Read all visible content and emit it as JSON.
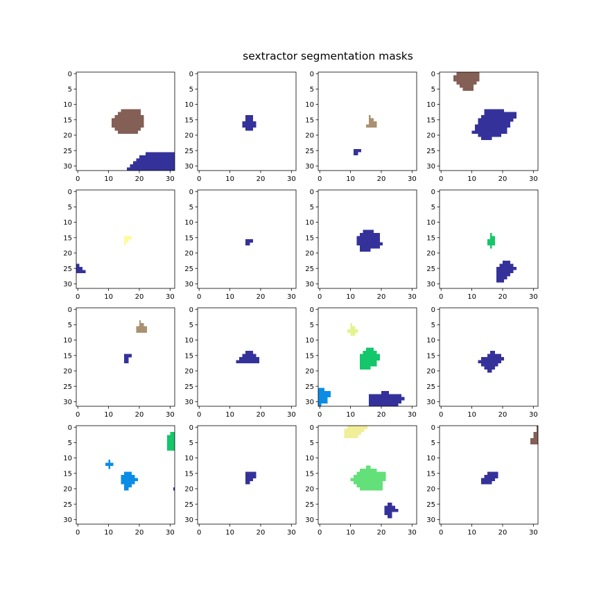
{
  "title": "sextractor segmentation masks",
  "chart_data": {
    "type": "heatmap",
    "title": "sextractor segmentation masks",
    "grid_rows": 4,
    "grid_cols": 4,
    "image_size": [
      32,
      32
    ],
    "xlim": [
      -0.5,
      31.5
    ],
    "ylim": [
      31.5,
      -0.5
    ],
    "xticks": [
      0,
      10,
      20,
      30
    ],
    "yticks": [
      0,
      5,
      10,
      15,
      20,
      25,
      30
    ],
    "grid": false,
    "panels": [
      {
        "segments": [
          {
            "color": "#835f56",
            "rows": {
              "12": [
                14,
                20
              ],
              "13": [
                13,
                20
              ],
              "14": [
                12,
                21
              ],
              "15": [
                11,
                21
              ],
              "16": [
                11,
                21
              ],
              "17": [
                11,
                21
              ],
              "18": [
                12,
                20
              ],
              "19": [
                13,
                19
              ]
            }
          },
          {
            "color": "#34329a",
            "rows": {
              "26": [
                22,
                31
              ],
              "27": [
                20,
                31
              ],
              "28": [
                19,
                31
              ],
              "29": [
                18,
                31
              ],
              "30": [
                17,
                31
              ],
              "31": [
                16,
                31
              ]
            }
          }
        ]
      },
      {
        "segments": [
          {
            "color": "#34329a",
            "rows": {
              "14": [
                15,
                17
              ],
              "15": [
                15,
                17
              ],
              "16": [
                14,
                18
              ],
              "17": [
                14,
                18
              ],
              "18": [
                15,
                17
              ]
            }
          }
        ]
      },
      {
        "segments": [
          {
            "color": "#a99171",
            "rows": {
              "14": [
                16,
                16
              ],
              "15": [
                16,
                17
              ],
              "16": [
                16,
                18
              ],
              "17": [
                15,
                18
              ]
            }
          },
          {
            "color": "#34329a",
            "rows": {
              "25": [
                11,
                13
              ],
              "26": [
                11,
                12
              ]
            }
          }
        ]
      },
      {
        "segments": [
          {
            "color": "#835f56",
            "rows": {
              "0": [
                5,
                12
              ],
              "1": [
                4,
                12
              ],
              "2": [
                4,
                12
              ],
              "3": [
                5,
                11
              ],
              "4": [
                6,
                10
              ],
              "5": [
                7,
                10
              ]
            }
          },
          {
            "color": "#34329a",
            "rows": {
              "12": [
                14,
                20
              ],
              "13": [
                14,
                24
              ],
              "14": [
                13,
                24
              ],
              "15": [
                12,
                23
              ],
              "16": [
                12,
                22
              ],
              "17": [
                11,
                22
              ],
              "18": [
                11,
                21
              ],
              "19": [
                10,
                21
              ],
              "20": [
                12,
                19
              ],
              "21": [
                13,
                16
              ]
            }
          }
        ]
      },
      {
        "segments": [
          {
            "color": "#fdfb9a",
            "rows": {
              "15": [
                15,
                17
              ],
              "16": [
                15,
                16
              ],
              "17": [
                15,
                15
              ]
            }
          },
          {
            "color": "#34329a",
            "rows": {
              "24": [
                -1,
                0
              ],
              "25": [
                -1,
                1
              ],
              "26": [
                -1,
                2
              ]
            }
          }
        ]
      },
      {
        "segments": [
          {
            "color": "#34329a",
            "rows": {
              "16": [
                15,
                17
              ],
              "17": [
                15,
                16
              ]
            }
          }
        ]
      },
      {
        "segments": [
          {
            "color": "#34329a",
            "rows": {
              "13": [
                14,
                17
              ],
              "14": [
                13,
                19
              ],
              "15": [
                12,
                19
              ],
              "16": [
                12,
                19
              ],
              "17": [
                12,
                20
              ],
              "18": [
                13,
                19
              ],
              "19": [
                13,
                16
              ]
            }
          }
        ]
      },
      {
        "segments": [
          {
            "color": "#14c76b",
            "rows": {
              "14": [
                16,
                16
              ],
              "15": [
                16,
                17
              ],
              "16": [
                15,
                17
              ],
              "17": [
                15,
                17
              ],
              "18": [
                16,
                16
              ]
            }
          },
          {
            "color": "#34329a",
            "rows": {
              "23": [
                20,
                22
              ],
              "24": [
                19,
                23
              ],
              "25": [
                18,
                24
              ],
              "26": [
                18,
                23
              ],
              "27": [
                18,
                22
              ],
              "28": [
                18,
                21
              ],
              "29": [
                18,
                20
              ]
            }
          }
        ]
      },
      {
        "segments": [
          {
            "color": "#a99171",
            "rows": {
              "4": [
                20,
                20
              ],
              "5": [
                20,
                21
              ],
              "6": [
                19,
                22
              ],
              "7": [
                19,
                22
              ]
            }
          },
          {
            "color": "#34329a",
            "rows": {
              "15": [
                15,
                17
              ],
              "16": [
                15,
                16
              ],
              "17": [
                15,
                16
              ]
            }
          }
        ]
      },
      {
        "segments": [
          {
            "color": "#34329a",
            "rows": {
              "14": [
                15,
                17
              ],
              "15": [
                14,
                18
              ],
              "16": [
                13,
                19
              ],
              "17": [
                12,
                19
              ]
            }
          }
        ]
      },
      {
        "segments": [
          {
            "color": "#e4f38f",
            "rows": {
              "5": [
                10,
                10
              ],
              "6": [
                10,
                11
              ],
              "7": [
                9,
                12
              ],
              "8": [
                10,
                11
              ]
            }
          },
          {
            "color": "#14c76b",
            "rows": {
              "13": [
                15,
                17
              ],
              "14": [
                14,
                18
              ],
              "15": [
                13,
                19
              ],
              "16": [
                13,
                19
              ],
              "17": [
                13,
                18
              ],
              "18": [
                13,
                18
              ],
              "19": [
                13,
                16
              ]
            }
          },
          {
            "color": "#0b8de6",
            "rows": {
              "26": [
                -1,
                1
              ],
              "27": [
                -1,
                3
              ],
              "28": [
                -1,
                3
              ],
              "29": [
                -1,
                2
              ],
              "30": [
                -1,
                2
              ],
              "31": [
                -1,
                0
              ]
            }
          },
          {
            "color": "#34329a",
            "rows": {
              "27": [
                20,
                22
              ],
              "28": [
                16,
                26
              ],
              "29": [
                16,
                27
              ],
              "30": [
                16,
                26
              ],
              "31": [
                16,
                25
              ]
            }
          }
        ]
      },
      {
        "segments": [
          {
            "color": "#34329a",
            "rows": {
              "14": [
                16,
                17
              ],
              "15": [
                15,
                19
              ],
              "16": [
                13,
                20
              ],
              "17": [
                12,
                19
              ],
              "18": [
                13,
                18
              ],
              "19": [
                14,
                17
              ],
              "20": [
                15,
                16
              ]
            }
          }
        ]
      },
      {
        "segments": [
          {
            "color": "#14c76b",
            "rows": {
              "2": [
                30,
                31
              ],
              "3": [
                29,
                31
              ],
              "4": [
                29,
                31
              ],
              "5": [
                29,
                31
              ],
              "6": [
                29,
                31
              ],
              "7": [
                29,
                31
              ]
            }
          },
          {
            "color": "#0b8de6",
            "rows": {
              "11": [
                10,
                10
              ],
              "12": [
                9,
                11
              ],
              "13": [
                10,
                10
              ]
            }
          },
          {
            "color": "#0b8de6",
            "rows": {
              "15": [
                15,
                17
              ],
              "16": [
                14,
                18
              ],
              "17": [
                14,
                19
              ],
              "18": [
                14,
                18
              ],
              "19": [
                15,
                17
              ],
              "20": [
                15,
                16
              ]
            }
          },
          {
            "color": "#34329a",
            "rows": {
              "20": [
                31,
                31
              ]
            }
          }
        ]
      },
      {
        "segments": [
          {
            "color": "#34329a",
            "rows": {
              "15": [
                15,
                18
              ],
              "16": [
                15,
                18
              ],
              "17": [
                15,
                17
              ],
              "18": [
                15,
                16
              ]
            }
          }
        ]
      },
      {
        "segments": [
          {
            "color": "#f0ee98",
            "rows": {
              "0": [
                9,
                15
              ],
              "1": [
                8,
                14
              ],
              "2": [
                8,
                13
              ],
              "3": [
                8,
                12
              ]
            }
          },
          {
            "color": "#64e07a",
            "rows": {
              "13": [
                15,
                16
              ],
              "14": [
                13,
                18
              ],
              "15": [
                12,
                21
              ],
              "16": [
                11,
                21
              ],
              "17": [
                10,
                21
              ],
              "18": [
                11,
                20
              ],
              "19": [
                12,
                20
              ],
              "20": [
                13,
                20
              ]
            }
          },
          {
            "color": "#34329a",
            "rows": {
              "25": [
                22,
                23
              ],
              "26": [
                21,
                24
              ],
              "27": [
                21,
                25
              ],
              "28": [
                21,
                23
              ],
              "29": [
                22,
                23
              ]
            }
          }
        ]
      },
      {
        "segments": [
          {
            "color": "#835f56",
            "rows": {
              "0": [
                31,
                31
              ],
              "1": [
                31,
                31
              ],
              "2": [
                30,
                31
              ],
              "3": [
                30,
                31
              ],
              "4": [
                29,
                31
              ],
              "5": [
                29,
                31
              ]
            }
          },
          {
            "color": "#34329a",
            "rows": {
              "15": [
                15,
                18
              ],
              "16": [
                14,
                18
              ],
              "17": [
                13,
                17
              ],
              "18": [
                13,
                16
              ]
            }
          }
        ]
      }
    ]
  }
}
